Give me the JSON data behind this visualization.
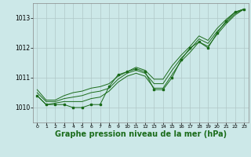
{
  "background_color": "#cce8e8",
  "grid_color": "#b0c8c8",
  "line_color": "#1a6b1a",
  "xlabel": "Graphe pression niveau de la mer (hPa)",
  "xlabel_fontsize": 7,
  "x_ticks": [
    0,
    1,
    2,
    3,
    4,
    5,
    6,
    7,
    8,
    9,
    10,
    11,
    12,
    13,
    14,
    15,
    16,
    17,
    18,
    19,
    20,
    21,
    22,
    23
  ],
  "ylim": [
    1009.5,
    1013.5
  ],
  "yticks": [
    1010,
    1011,
    1012,
    1013
  ],
  "xlim": [
    -0.5,
    23.5
  ],
  "series": {
    "main": [
      1010.4,
      1010.1,
      1010.1,
      1010.1,
      1010.0,
      1010.0,
      1010.1,
      1010.1,
      1010.7,
      1011.1,
      1011.2,
      1011.3,
      1011.2,
      1010.6,
      1010.6,
      1011.0,
      1011.6,
      1012.0,
      1012.2,
      1012.0,
      1012.5,
      1012.9,
      1013.2,
      1013.3
    ],
    "line2": [
      1010.4,
      1010.1,
      1010.15,
      1010.2,
      1010.2,
      1010.2,
      1010.3,
      1010.35,
      1010.55,
      1010.85,
      1011.05,
      1011.15,
      1011.05,
      1010.65,
      1010.65,
      1011.1,
      1011.55,
      1011.85,
      1012.2,
      1012.05,
      1012.45,
      1012.8,
      1013.1,
      1013.3
    ],
    "line3": [
      1010.5,
      1010.2,
      1010.2,
      1010.3,
      1010.35,
      1010.4,
      1010.5,
      1010.55,
      1010.65,
      1010.95,
      1011.15,
      1011.25,
      1011.15,
      1010.8,
      1010.8,
      1011.25,
      1011.65,
      1011.95,
      1012.3,
      1012.15,
      1012.55,
      1012.85,
      1013.15,
      1013.3
    ],
    "line4": [
      1010.6,
      1010.25,
      1010.25,
      1010.4,
      1010.5,
      1010.55,
      1010.65,
      1010.7,
      1010.8,
      1011.05,
      1011.2,
      1011.35,
      1011.25,
      1010.95,
      1010.95,
      1011.4,
      1011.75,
      1012.05,
      1012.4,
      1012.25,
      1012.65,
      1012.95,
      1013.2,
      1013.3
    ]
  }
}
